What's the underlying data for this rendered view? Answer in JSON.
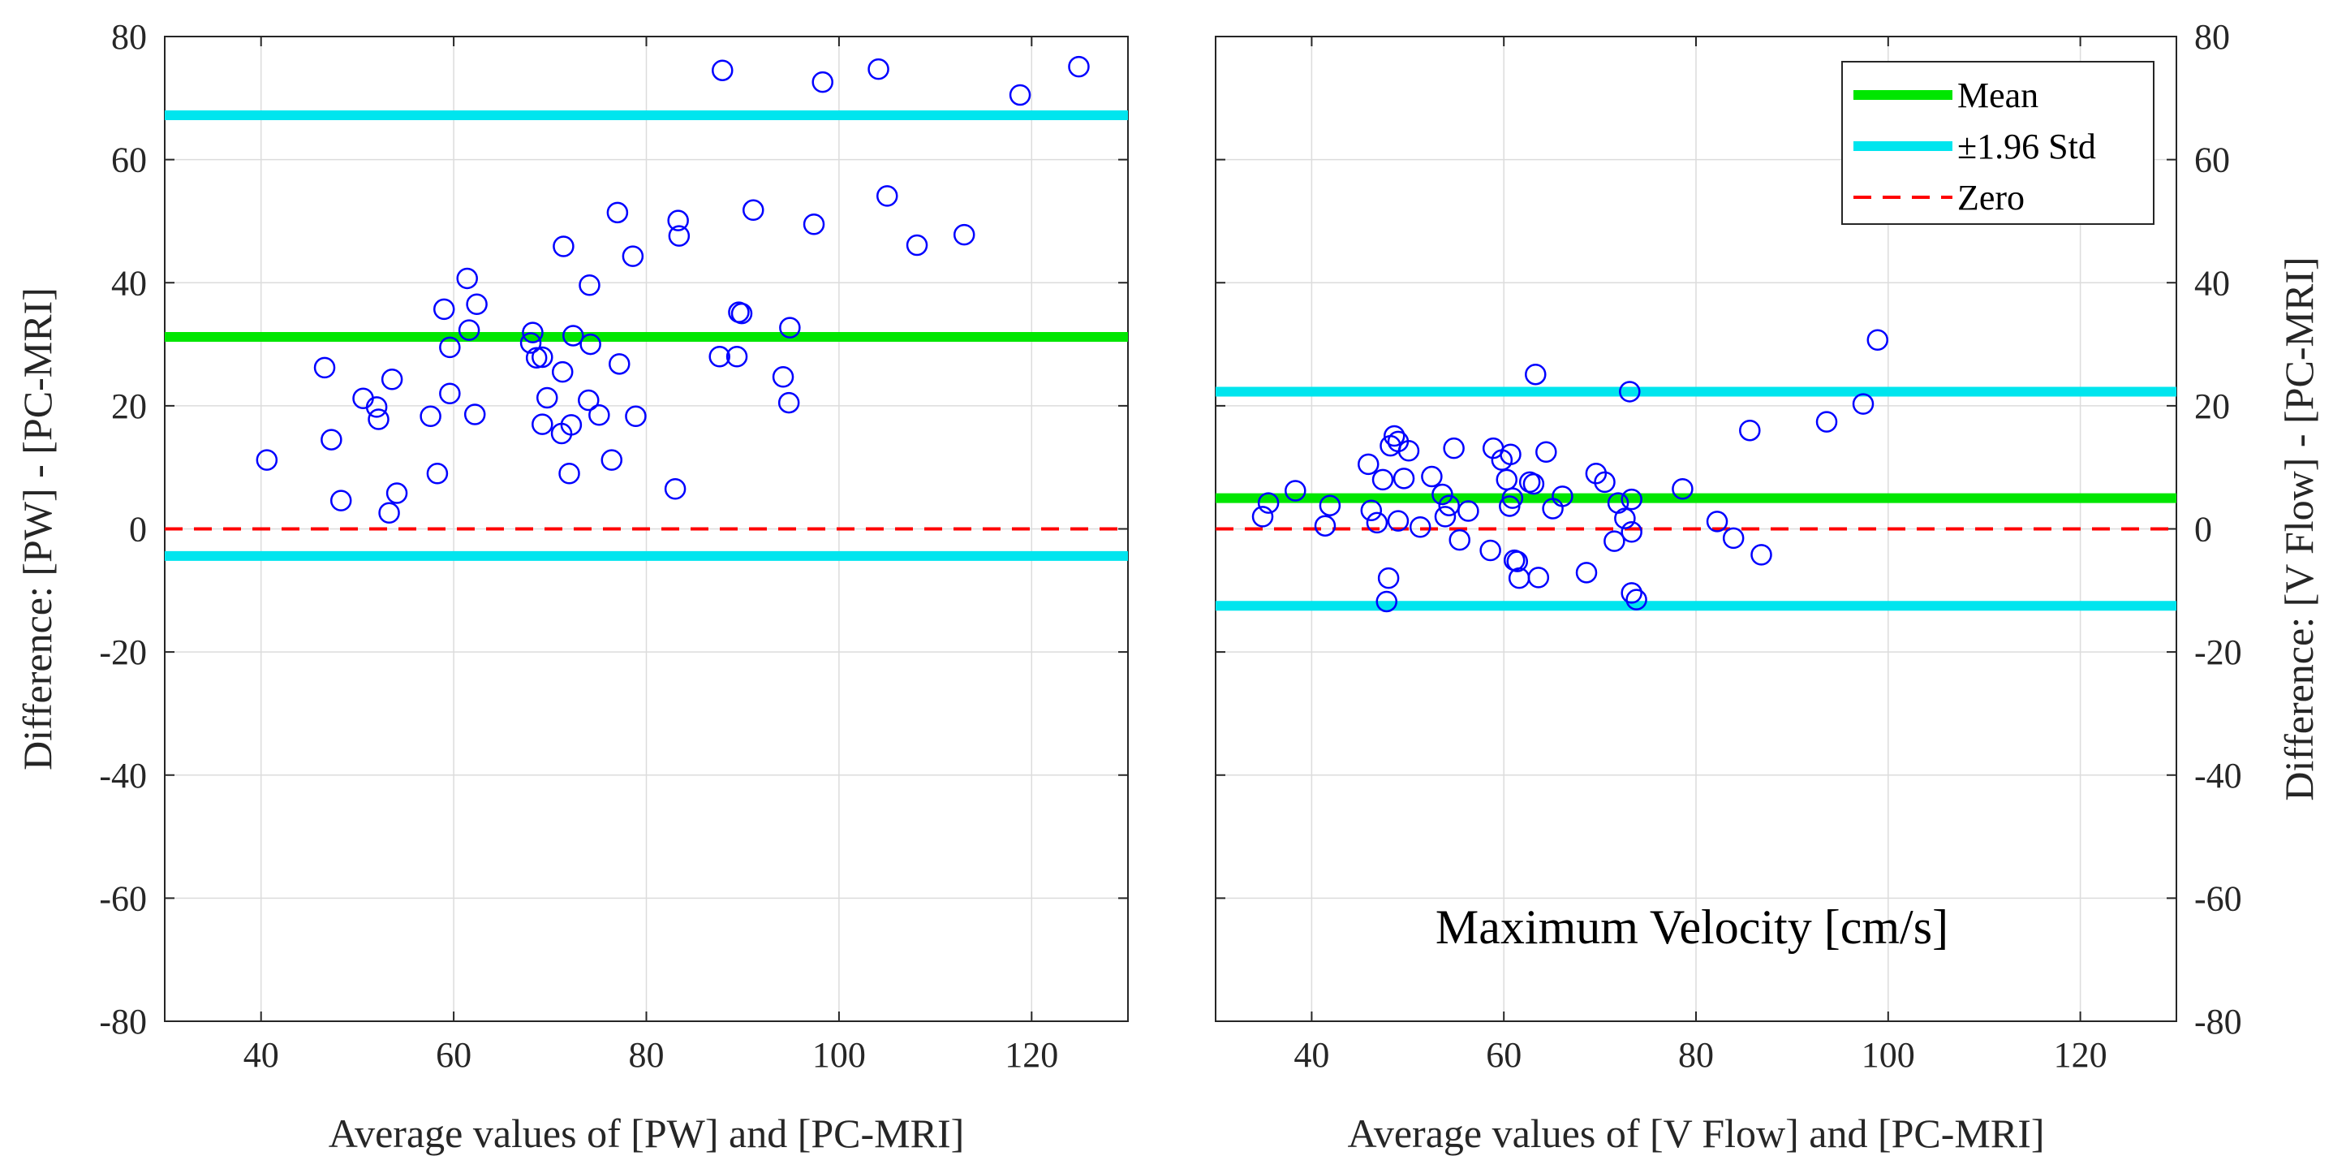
{
  "colors": {
    "mean": "#00e600",
    "std": "#00e5ee",
    "zero": "#ff0000",
    "points": "#0000ff",
    "grid": "#dcdcdc",
    "axis": "#262626"
  },
  "legend": {
    "mean": "Mean",
    "std": "±1.96 Std",
    "zero": "Zero",
    "placement": "top-right of right panel"
  },
  "chart_data": [
    {
      "type": "scatter",
      "title": "",
      "xlabel": "Average values of [PW] and [PC-MRI]",
      "ylabel": "Difference: [PW] - [PC-MRI]",
      "ylabel_side": "left",
      "xlim": [
        30,
        130
      ],
      "ylim": [
        -80,
        80
      ],
      "xticks": [
        40,
        60,
        80,
        100,
        120
      ],
      "yticks": [
        -80,
        -60,
        -40,
        -20,
        0,
        20,
        40,
        60,
        80
      ],
      "xtick_labels": [
        "40",
        "60",
        "80",
        "100",
        "120"
      ],
      "ytick_labels": [
        "-80",
        "-60",
        "-40",
        "-20",
        "0",
        "20",
        "40",
        "60",
        "80"
      ],
      "grid": true,
      "mean": 31.2,
      "upper_limit": 67.2,
      "lower_limit": -4.4,
      "zero": 0,
      "annotation": "",
      "points": [
        [
          40.6,
          11.2
        ],
        [
          46.6,
          26.2
        ],
        [
          47.3,
          14.5
        ],
        [
          48.3,
          4.6
        ],
        [
          50.6,
          21.2
        ],
        [
          52.0,
          19.8
        ],
        [
          52.2,
          17.8
        ],
        [
          53.3,
          2.6
        ],
        [
          53.6,
          24.3
        ],
        [
          54.1,
          5.8
        ],
        [
          57.6,
          18.3
        ],
        [
          58.3,
          9.0
        ],
        [
          59.0,
          35.7
        ],
        [
          59.6,
          29.5
        ],
        [
          59.6,
          22.0
        ],
        [
          61.4,
          40.7
        ],
        [
          61.6,
          32.3
        ],
        [
          62.2,
          18.6
        ],
        [
          62.4,
          36.5
        ],
        [
          68.0,
          30.2
        ],
        [
          68.2,
          31.9
        ],
        [
          68.6,
          27.8
        ],
        [
          69.2,
          27.9
        ],
        [
          69.2,
          17.0
        ],
        [
          69.7,
          21.3
        ],
        [
          71.2,
          15.5
        ],
        [
          71.4,
          45.9
        ],
        [
          71.3,
          25.5
        ],
        [
          72.0,
          9.0
        ],
        [
          72.2,
          16.9
        ],
        [
          72.4,
          31.4
        ],
        [
          74.0,
          20.9
        ],
        [
          74.1,
          39.6
        ],
        [
          74.2,
          30.0
        ],
        [
          75.1,
          18.5
        ],
        [
          76.4,
          11.2
        ],
        [
          77.0,
          51.4
        ],
        [
          77.2,
          26.8
        ],
        [
          78.6,
          44.3
        ],
        [
          78.9,
          18.3
        ],
        [
          83.0,
          6.5
        ],
        [
          83.3,
          50.1
        ],
        [
          83.4,
          47.6
        ],
        [
          87.6,
          28.0
        ],
        [
          87.9,
          74.5
        ],
        [
          89.4,
          28.0
        ],
        [
          89.6,
          35.2
        ],
        [
          89.9,
          35.0
        ],
        [
          91.1,
          51.8
        ],
        [
          94.2,
          24.7
        ],
        [
          94.8,
          20.5
        ],
        [
          94.9,
          32.7
        ],
        [
          97.4,
          49.5
        ],
        [
          98.3,
          72.6
        ],
        [
          104.1,
          74.7
        ],
        [
          105.0,
          54.1
        ],
        [
          108.1,
          46.1
        ],
        [
          113.0,
          47.8
        ],
        [
          118.8,
          70.5
        ],
        [
          124.9,
          75.1
        ]
      ]
    },
    {
      "type": "scatter",
      "title": "",
      "xlabel": "Average values of [V Flow] and [PC-MRI]",
      "ylabel": "Difference: [V Flow] - [PC-MRI]",
      "ylabel_side": "right",
      "xlim": [
        30,
        130
      ],
      "ylim": [
        -80,
        80
      ],
      "xticks": [
        40,
        60,
        80,
        100,
        120
      ],
      "yticks": [
        -80,
        -60,
        -40,
        -20,
        0,
        20,
        40,
        60,
        80
      ],
      "xtick_labels": [
        "40",
        "60",
        "80",
        "100",
        "120"
      ],
      "ytick_labels": [
        "-80",
        "-60",
        "-40",
        "-20",
        "0",
        "20",
        "40",
        "60",
        "80"
      ],
      "grid": true,
      "mean": 5.0,
      "upper_limit": 22.3,
      "lower_limit": -12.5,
      "zero": 0,
      "annotation": "Maximum Velocity [cm/s]",
      "points": [
        [
          34.9,
          2.0
        ],
        [
          35.5,
          4.2
        ],
        [
          38.3,
          6.2
        ],
        [
          41.4,
          0.5
        ],
        [
          41.9,
          3.8
        ],
        [
          45.9,
          10.5
        ],
        [
          46.2,
          3.0
        ],
        [
          46.8,
          1.0
        ],
        [
          47.4,
          8.0
        ],
        [
          47.8,
          -11.8
        ],
        [
          48.0,
          -8.0
        ],
        [
          48.2,
          13.5
        ],
        [
          48.6,
          15.1
        ],
        [
          49.0,
          14.2
        ],
        [
          49.0,
          1.3
        ],
        [
          49.6,
          8.2
        ],
        [
          50.1,
          12.7
        ],
        [
          51.3,
          0.3
        ],
        [
          52.5,
          8.5
        ],
        [
          53.6,
          5.6
        ],
        [
          53.9,
          2.0
        ],
        [
          54.3,
          3.8
        ],
        [
          54.8,
          13.1
        ],
        [
          55.4,
          -1.8
        ],
        [
          56.3,
          2.9
        ],
        [
          58.6,
          -3.5
        ],
        [
          58.9,
          13.1
        ],
        [
          59.8,
          11.2
        ],
        [
          60.3,
          8.0
        ],
        [
          60.6,
          3.7
        ],
        [
          60.7,
          12.1
        ],
        [
          60.9,
          5.0
        ],
        [
          61.1,
          -5.1
        ],
        [
          61.4,
          -5.3
        ],
        [
          61.6,
          -8.0
        ],
        [
          62.7,
          7.6
        ],
        [
          63.1,
          7.3
        ],
        [
          63.3,
          25.1
        ],
        [
          63.6,
          -7.9
        ],
        [
          64.4,
          12.5
        ],
        [
          65.1,
          3.3
        ],
        [
          66.1,
          5.3
        ],
        [
          68.6,
          -7.1
        ],
        [
          69.6,
          9.0
        ],
        [
          70.5,
          7.6
        ],
        [
          71.5,
          -2.0
        ],
        [
          71.9,
          4.2
        ],
        [
          72.6,
          1.7
        ],
        [
          73.1,
          22.3
        ],
        [
          73.3,
          -0.5
        ],
        [
          73.3,
          4.8
        ],
        [
          73.3,
          -10.4
        ],
        [
          73.8,
          -11.5
        ],
        [
          78.6,
          6.5
        ],
        [
          82.2,
          1.2
        ],
        [
          83.9,
          -1.5
        ],
        [
          85.6,
          16.0
        ],
        [
          86.8,
          -4.2
        ],
        [
          93.6,
          17.4
        ],
        [
          97.4,
          20.3
        ],
        [
          98.9,
          30.7
        ]
      ]
    }
  ]
}
